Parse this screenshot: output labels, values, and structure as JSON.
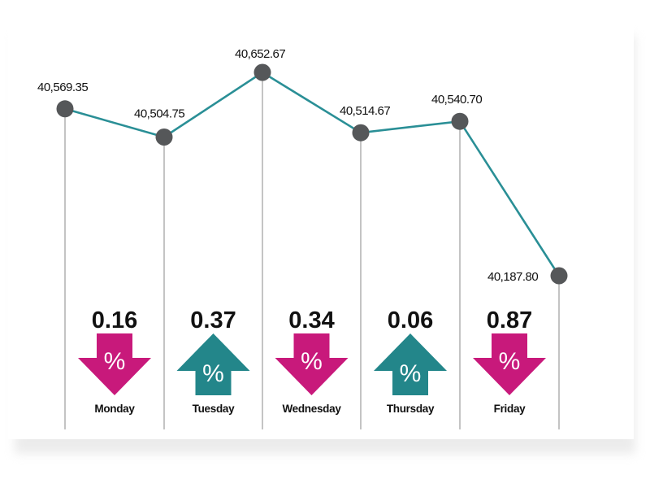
{
  "chart_data": {
    "type": "line",
    "categories": [
      "Monday",
      "Tuesday",
      "Wednesday",
      "Thursday",
      "Friday"
    ],
    "points": [
      {
        "label": "40,569.35",
        "value": 40569.35
      },
      {
        "label": "40,504.75",
        "value": 40504.75
      },
      {
        "label": "40,652.67",
        "value": 40652.67
      },
      {
        "label": "40,514.67",
        "value": 40514.67
      },
      {
        "label": "40,540.70",
        "value": 40540.7
      },
      {
        "label": "40,187.80",
        "value": 40187.8
      }
    ],
    "daily_changes": [
      {
        "day": "Monday",
        "percent": "0.16",
        "direction": "down"
      },
      {
        "day": "Tuesday",
        "percent": "0.37",
        "direction": "up"
      },
      {
        "day": "Wednesday",
        "percent": "0.34",
        "direction": "down"
      },
      {
        "day": "Thursday",
        "percent": "0.06",
        "direction": "up"
      },
      {
        "day": "Friday",
        "percent": "0.87",
        "direction": "down"
      }
    ],
    "arrow_symbol": "%",
    "colors": {
      "line": "#2a8f96",
      "marker": "#555759",
      "gridline": "#8a8a8a",
      "down": "#c8197b",
      "up": "#23868a"
    }
  }
}
